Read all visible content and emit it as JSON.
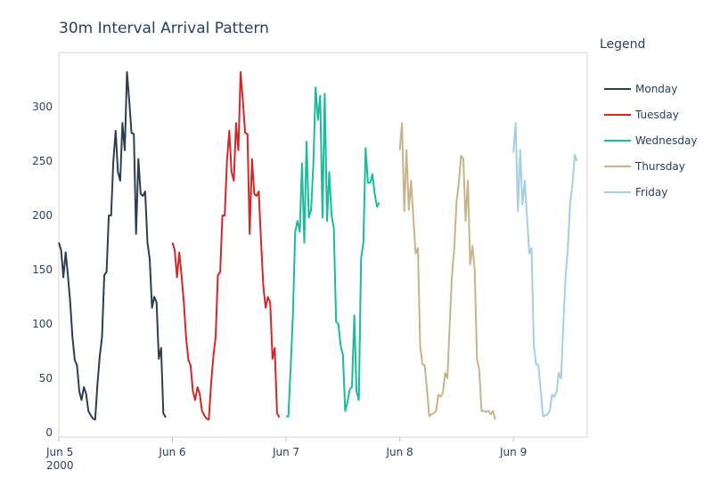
{
  "chart_data": {
    "type": "line",
    "title": "30m Interval Arrival Pattern",
    "xlabel": "",
    "ylabel": "",
    "xlim": [
      0,
      4.65
    ],
    "ylim": [
      -4,
      350
    ],
    "grid": true,
    "legend": {
      "title": "Legend",
      "position": "right"
    },
    "x_ticks": [
      {
        "x": 0,
        "label": "Jun 5",
        "sublabel": "2000"
      },
      {
        "x": 1,
        "label": "Jun 6"
      },
      {
        "x": 2,
        "label": "Jun 7"
      },
      {
        "x": 3,
        "label": "Jun 8"
      },
      {
        "x": 4,
        "label": "Jun 9"
      }
    ],
    "y_ticks": [
      0,
      50,
      100,
      150,
      200,
      250,
      300
    ],
    "series": [
      {
        "name": "Monday",
        "color": "#2c3e50",
        "x": [
          0.0,
          0.02,
          0.04,
          0.06,
          0.08,
          0.1,
          0.12,
          0.14,
          0.16,
          0.18,
          0.2,
          0.22,
          0.24,
          0.26,
          0.28,
          0.3,
          0.32,
          0.34,
          0.36,
          0.38,
          0.4,
          0.42,
          0.44,
          0.46,
          0.48,
          0.5,
          0.52,
          0.54,
          0.56,
          0.58,
          0.6,
          0.62,
          0.64,
          0.66,
          0.68,
          0.7,
          0.72,
          0.74,
          0.76,
          0.78,
          0.8,
          0.82,
          0.84,
          0.86,
          0.88,
          0.9,
          0.92,
          0.94,
          0.96,
          0.98
        ],
        "values": [
          175,
          168,
          143,
          166,
          145,
          120,
          88,
          67,
          62,
          38,
          30,
          42,
          36,
          20,
          16,
          13,
          12,
          45,
          70,
          88,
          145,
          148,
          200,
          200,
          250,
          278,
          240,
          232,
          285,
          260,
          332,
          305,
          276,
          275,
          183,
          252,
          220,
          218,
          222,
          175,
          160,
          115,
          125,
          120,
          68,
          78,
          18,
          14,
          null,
          null
        ]
      },
      {
        "name": "Tuesday",
        "color": "#d62728",
        "x": [
          1.0,
          1.02,
          1.04,
          1.06,
          1.08,
          1.1,
          1.12,
          1.14,
          1.16,
          1.18,
          1.2,
          1.22,
          1.24,
          1.26,
          1.28,
          1.3,
          1.32,
          1.34,
          1.36,
          1.38,
          1.4,
          1.42,
          1.44,
          1.46,
          1.48,
          1.5,
          1.52,
          1.54,
          1.56,
          1.58,
          1.6,
          1.62,
          1.64,
          1.66,
          1.68,
          1.7,
          1.72,
          1.74,
          1.76,
          1.78,
          1.8,
          1.82,
          1.84,
          1.86,
          1.88,
          1.9,
          1.92,
          1.94,
          1.96,
          1.98
        ],
        "values": [
          175,
          168,
          143,
          166,
          145,
          120,
          88,
          67,
          62,
          38,
          30,
          42,
          36,
          20,
          16,
          13,
          12,
          45,
          70,
          88,
          145,
          148,
          200,
          200,
          250,
          278,
          240,
          232,
          285,
          260,
          332,
          305,
          276,
          275,
          183,
          252,
          220,
          218,
          222,
          175,
          135,
          115,
          125,
          120,
          68,
          78,
          18,
          14,
          null,
          null
        ]
      },
      {
        "name": "Wednesday",
        "color": "#1abc9c",
        "x": [
          2.0,
          2.02,
          2.04,
          2.06,
          2.08,
          2.1,
          2.12,
          2.14,
          2.16,
          2.18,
          2.2,
          2.22,
          2.24,
          2.26,
          2.28,
          2.3,
          2.32,
          2.34,
          2.36,
          2.38,
          2.4,
          2.42,
          2.44,
          2.46,
          2.48,
          2.5,
          2.52,
          2.54,
          2.56,
          2.58,
          2.6,
          2.62,
          2.64,
          2.66,
          2.68,
          2.7,
          2.72,
          2.74,
          2.76,
          2.78,
          2.8,
          2.82,
          2.84,
          2.86,
          2.88,
          2.9,
          2.92,
          2.94,
          2.96,
          2.98
        ],
        "values": [
          15,
          15,
          60,
          108,
          185,
          195,
          185,
          248,
          175,
          268,
          198,
          205,
          248,
          318,
          288,
          310,
          198,
          312,
          195,
          240,
          200,
          188,
          102,
          100,
          80,
          72,
          20,
          28,
          40,
          42,
          108,
          38,
          30,
          160,
          175,
          262,
          230,
          230,
          238,
          220,
          208,
          212,
          null,
          null,
          null,
          null,
          null,
          null,
          null,
          null
        ]
      },
      {
        "name": "Thursday",
        "color": "#c8b48a",
        "x": [
          3.0,
          3.02,
          3.04,
          3.06,
          3.08,
          3.1,
          3.12,
          3.14,
          3.16,
          3.18,
          3.2,
          3.22,
          3.24,
          3.26,
          3.28,
          3.3,
          3.32,
          3.34,
          3.36,
          3.38,
          3.4,
          3.42,
          3.44,
          3.46,
          3.48,
          3.5,
          3.52,
          3.54,
          3.56,
          3.58,
          3.6,
          3.62,
          3.64,
          3.66,
          3.68,
          3.7,
          3.72,
          3.74,
          3.76,
          3.78,
          3.8,
          3.82,
          3.84,
          3.86,
          3.88,
          3.9,
          3.92,
          3.94,
          3.96,
          3.98
        ],
        "values": [
          260,
          285,
          204,
          260,
          205,
          232,
          198,
          165,
          170,
          80,
          63,
          62,
          40,
          15,
          17,
          18,
          20,
          35,
          33,
          37,
          55,
          50,
          100,
          145,
          170,
          212,
          230,
          255,
          252,
          195,
          232,
          155,
          172,
          150,
          68,
          58,
          20,
          20,
          19,
          20,
          17,
          20,
          12,
          null,
          null,
          null,
          null,
          null,
          null,
          null
        ]
      },
      {
        "name": "Friday",
        "color": "#a6cee3",
        "x": [
          4.0,
          4.02,
          4.04,
          4.06,
          4.08,
          4.1,
          4.12,
          4.14,
          4.16,
          4.18,
          4.2,
          4.22,
          4.24,
          4.26,
          4.28,
          4.3,
          4.32,
          4.34,
          4.36,
          4.38,
          4.4,
          4.42,
          4.44,
          4.46,
          4.48,
          4.5,
          4.52,
          4.54,
          4.56,
          4.58,
          4.6,
          4.62,
          4.64,
          4.66
        ],
        "values": [
          258,
          285,
          204,
          260,
          210,
          232,
          198,
          165,
          170,
          80,
          63,
          62,
          40,
          15,
          16,
          17,
          20,
          35,
          33,
          37,
          55,
          50,
          100,
          145,
          170,
          212,
          228,
          256,
          250,
          null,
          null,
          null,
          null,
          null
        ]
      }
    ]
  }
}
